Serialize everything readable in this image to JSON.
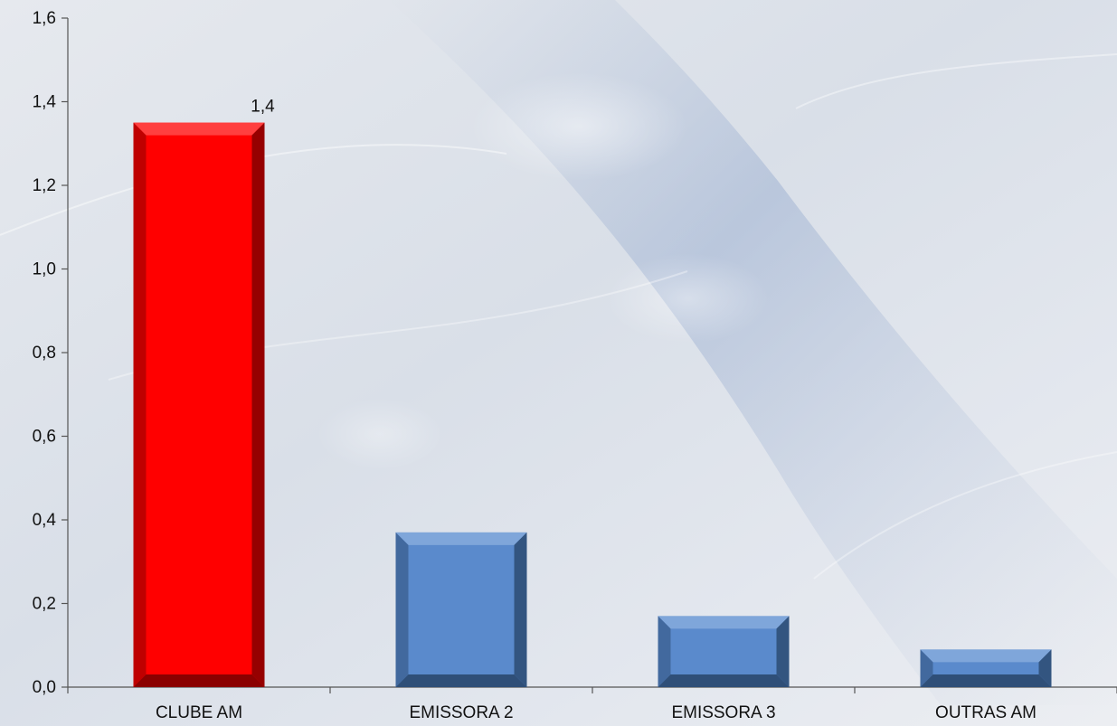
{
  "chart_data": {
    "type": "bar",
    "title": "",
    "xlabel": "",
    "ylabel": "",
    "categories": [
      "CLUBE AM",
      "EMISSORA 2",
      "EMISSORA 3",
      "OUTRAS AM"
    ],
    "values": [
      1.35,
      0.37,
      0.17,
      0.09
    ],
    "data_labels": [
      "1,4",
      "",
      "",
      ""
    ],
    "ylim": [
      0,
      1.6
    ],
    "yticks": [
      "0,0",
      "0,2",
      "0,4",
      "0,6",
      "0,8",
      "1,0",
      "1,2",
      "1,4",
      "1,6"
    ],
    "grid": false,
    "legend": "none",
    "colors": {
      "highlight": "#FF0000",
      "highlight_dark": "#8B0000",
      "highlight_light": "#FF5A5A",
      "default": "#5A8ACC",
      "default_dark": "#2F4F78",
      "default_light": "#8FB2E0"
    },
    "highlight_index": 0
  }
}
